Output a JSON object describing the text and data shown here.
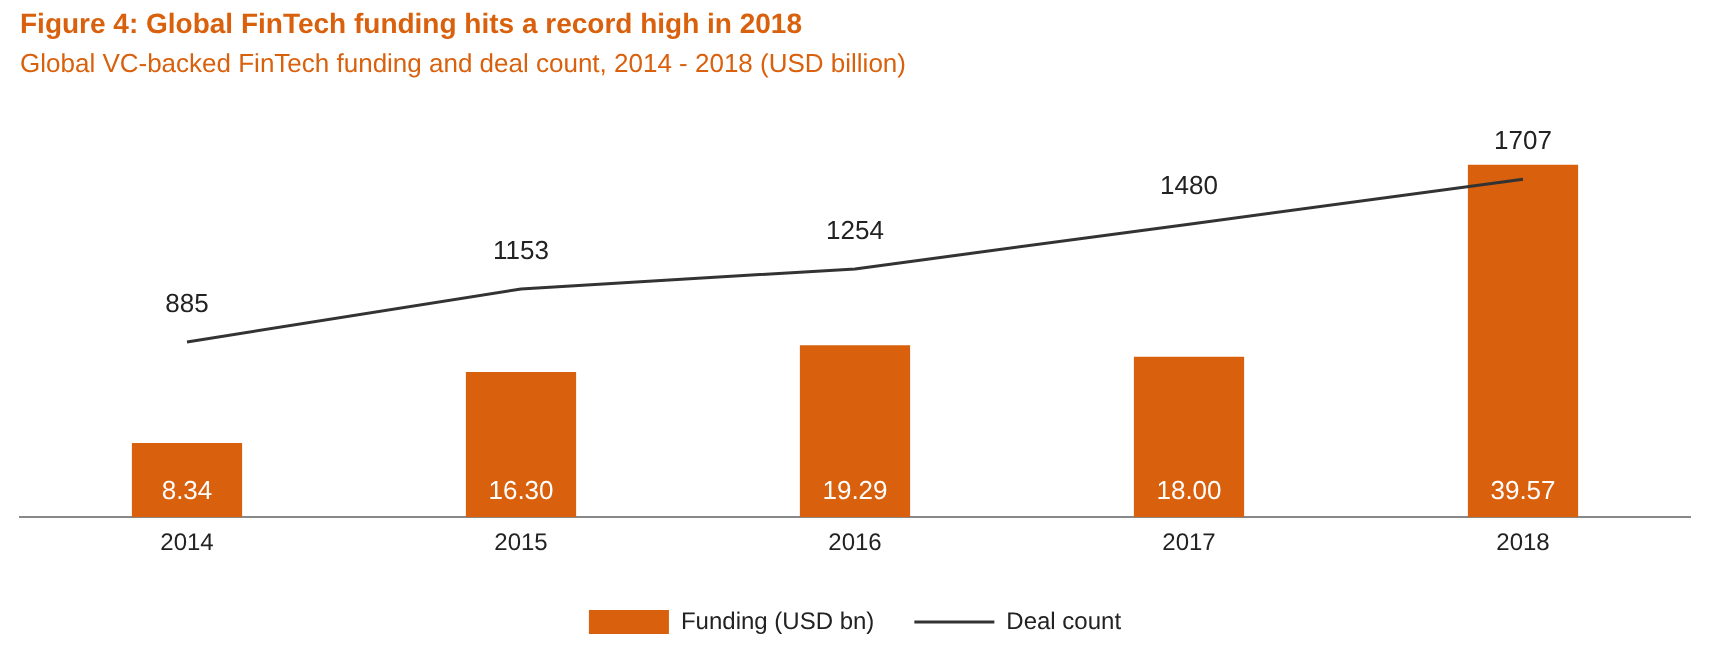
{
  "chart_data": {
    "type": "bar",
    "title": "Figure 4: Global FinTech funding hits a record high in 2018",
    "subtitle": "Global VC-backed FinTech funding and deal count, 2014 - 2018 (USD billion)",
    "categories": [
      "2014",
      "2015",
      "2016",
      "2017",
      "2018"
    ],
    "series": [
      {
        "name": "Funding (USD bn)",
        "color": "#d9600c",
        "values": [
          8.34,
          16.3,
          19.29,
          18.0,
          39.57
        ],
        "value_labels": [
          "8.34",
          "16.30",
          "19.29",
          "18.00",
          "39.57"
        ]
      },
      {
        "name": "Deal count",
        "type": "line",
        "axis": "y2",
        "color": "#333333",
        "values": [
          885,
          1153,
          1254,
          1480,
          1707
        ],
        "value_labels": [
          "885",
          "1153",
          "1254",
          "1480",
          "1707"
        ]
      }
    ],
    "data_labels": true,
    "legend": "bottom",
    "grid": false,
    "tick_labels": "x",
    "marker": "none",
    "line_style": "solid"
  }
}
